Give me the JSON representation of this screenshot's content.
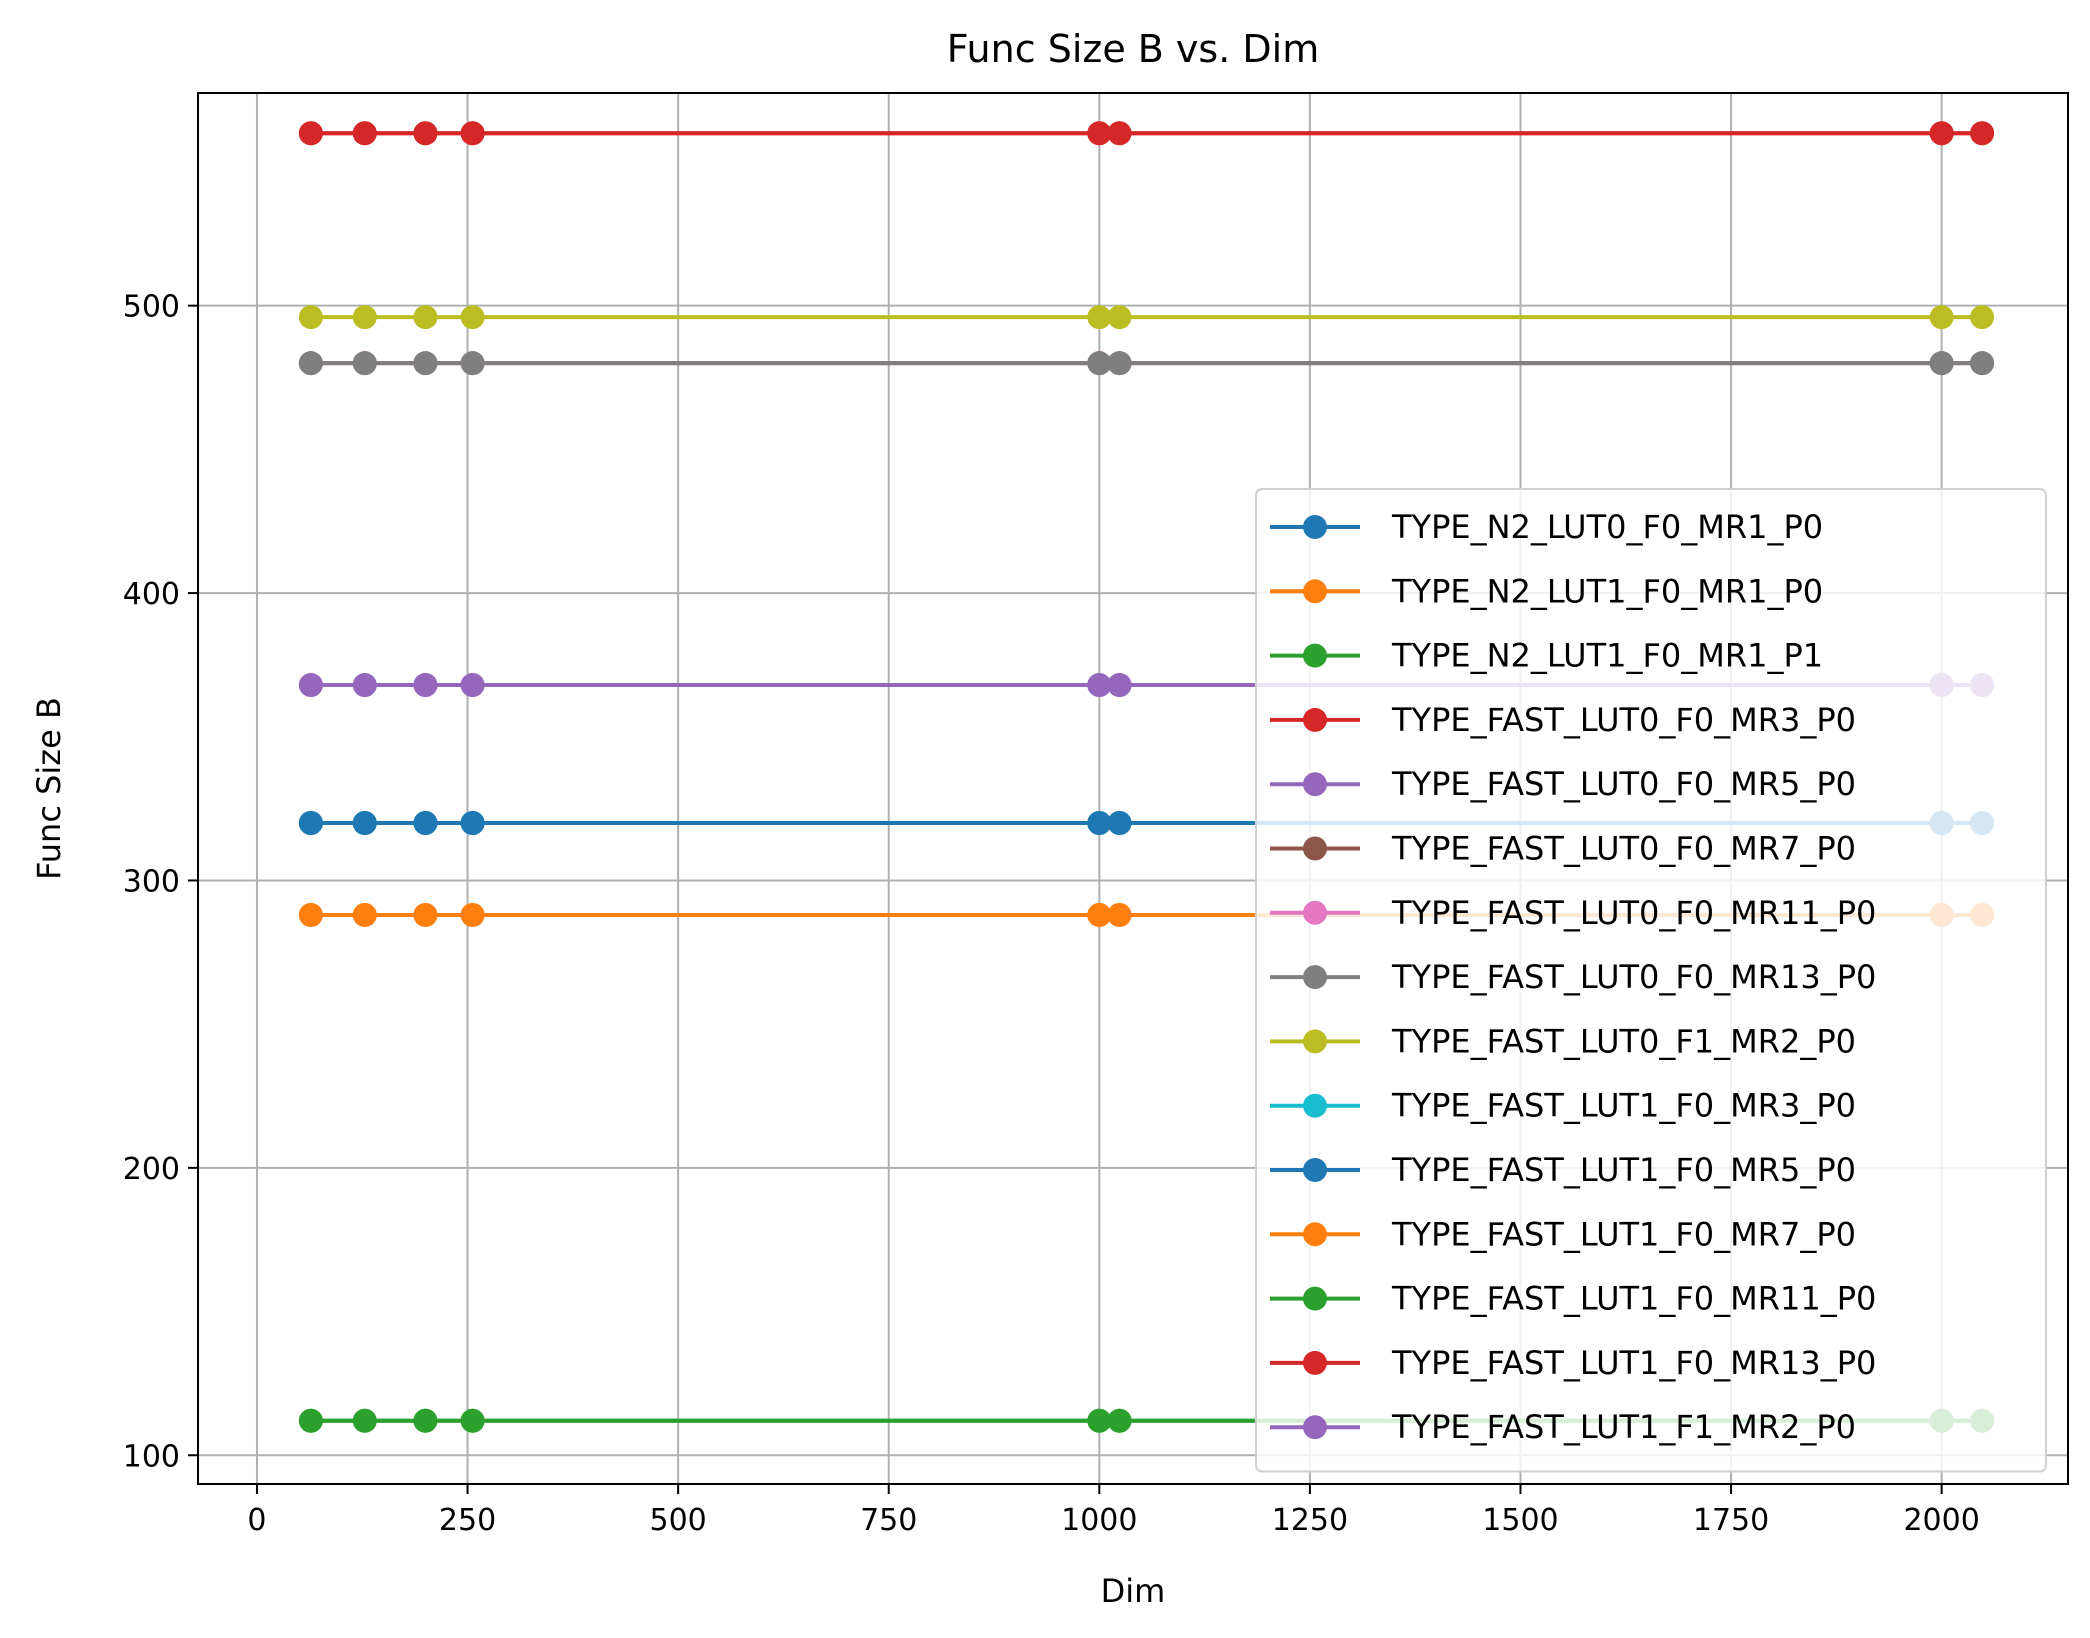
{
  "chart_data": {
    "type": "line",
    "title": "Func Size B vs. Dim",
    "xlabel": "Dim",
    "ylabel": "Func Size B",
    "xlim": [
      -70,
      2150
    ],
    "ylim": [
      90,
      574
    ],
    "xticks": [
      0,
      250,
      500,
      750,
      1000,
      1250,
      1500,
      1750,
      2000
    ],
    "yticks": [
      100,
      200,
      300,
      400,
      500
    ],
    "grid": true,
    "legend_position": "lower right",
    "x": [
      64,
      128,
      200,
      256,
      1000,
      1024,
      2000,
      2048
    ],
    "series": [
      {
        "name": "TYPE_N2_LUT0_F0_MR1_P0",
        "color": "#1f77b4",
        "values": [
          320,
          320,
          320,
          320,
          320,
          320,
          320,
          320
        ]
      },
      {
        "name": "TYPE_N2_LUT1_F0_MR1_P0",
        "color": "#ff7f0e",
        "values": [
          288,
          288,
          288,
          288,
          288,
          288,
          288,
          288
        ]
      },
      {
        "name": "TYPE_N2_LUT1_F0_MR1_P1",
        "color": "#2ca02c",
        "values": [
          112,
          112,
          112,
          112,
          112,
          112,
          112,
          112
        ]
      },
      {
        "name": "TYPE_FAST_LUT0_F0_MR3_P0",
        "color": "#d62728",
        "values": [
          560,
          560,
          560,
          560,
          560,
          560,
          560,
          560
        ]
      },
      {
        "name": "TYPE_FAST_LUT0_F0_MR5_P0",
        "color": "#9467bd",
        "values": [
          368,
          368,
          368,
          368,
          368,
          368,
          368,
          368
        ]
      },
      {
        "name": "TYPE_FAST_LUT0_F0_MR7_P0",
        "color": "#8c564b",
        "values": [
          480,
          480,
          480,
          480,
          480,
          480,
          480,
          480
        ]
      },
      {
        "name": "TYPE_FAST_LUT0_F0_MR11_P0",
        "color": "#e377c2",
        "values": [
          480,
          480,
          480,
          480,
          480,
          480,
          480,
          480
        ]
      },
      {
        "name": "TYPE_FAST_LUT0_F0_MR13_P0",
        "color": "#7f7f7f",
        "values": [
          480,
          480,
          480,
          480,
          480,
          480,
          480,
          480
        ]
      },
      {
        "name": "TYPE_FAST_LUT0_F1_MR2_P0",
        "color": "#bcbd22",
        "values": [
          496,
          496,
          496,
          496,
          496,
          496,
          496,
          496
        ]
      },
      {
        "name": "TYPE_FAST_LUT1_F0_MR3_P0",
        "color": "#17becf",
        "values": [
          320,
          320,
          320,
          320,
          320,
          320,
          320,
          320
        ]
      },
      {
        "name": "TYPE_FAST_LUT1_F0_MR5_P0",
        "color": "#1f77b4",
        "values": [
          320,
          320,
          320,
          320,
          320,
          320,
          320,
          320
        ]
      },
      {
        "name": "TYPE_FAST_LUT1_F0_MR7_P0",
        "color": "#ff7f0e",
        "values": [
          288,
          288,
          288,
          288,
          288,
          288,
          288,
          288
        ]
      },
      {
        "name": "TYPE_FAST_LUT1_F0_MR11_P0",
        "color": "#2ca02c",
        "values": [
          112,
          112,
          112,
          112,
          112,
          112,
          112,
          112
        ]
      },
      {
        "name": "TYPE_FAST_LUT1_F0_MR13_P0",
        "color": "#d62728",
        "values": [
          560,
          560,
          560,
          560,
          560,
          560,
          560,
          560
        ]
      },
      {
        "name": "TYPE_FAST_LUT1_F1_MR2_P0",
        "color": "#9467bd",
        "values": [
          368,
          368,
          368,
          368,
          368,
          368,
          368,
          368
        ]
      }
    ]
  }
}
